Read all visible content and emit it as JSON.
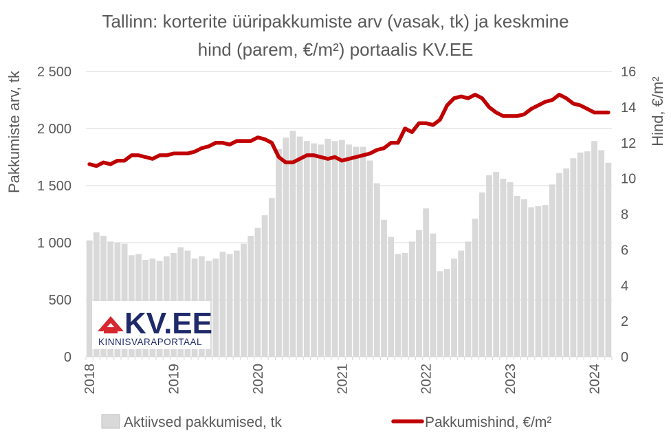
{
  "chart_data": {
    "type": "bar+line",
    "title_lines": [
      "Tallinn: korterite üüripakkumiste arv (vasak, tk) ja keskmine",
      "hind (parem, €/m²) portaalis KV.EE"
    ],
    "left_axis": {
      "label": "Pakkumiste arv, tk",
      "range": [
        0,
        2500
      ],
      "ticks": [
        0,
        500,
        1000,
        1500,
        2000,
        2500
      ],
      "tick_labels": [
        "0",
        "500",
        "1 000",
        "1 500",
        "2 000",
        "2 500"
      ]
    },
    "right_axis": {
      "label": "Hind, €/m²",
      "range": [
        0,
        16
      ],
      "ticks": [
        0,
        2,
        4,
        6,
        8,
        10,
        12,
        14,
        16
      ],
      "tick_labels": [
        "0",
        "2",
        "4",
        "6",
        "8",
        "10",
        "12",
        "14",
        "16"
      ]
    },
    "x_axis": {
      "start": "2018-01",
      "year_labels": [
        "2018",
        "2019",
        "2020",
        "2021",
        "2022",
        "2023",
        "2024"
      ]
    },
    "grid": "horizontal",
    "legend_position": "bottom",
    "series": [
      {
        "name": "Aktiivsed pakkumised, tk",
        "type": "bar",
        "axis": "left",
        "color": "#d9d9d9",
        "values": [
          1020,
          1090,
          1060,
          1010,
          1000,
          990,
          890,
          900,
          850,
          860,
          840,
          880,
          910,
          960,
          930,
          860,
          880,
          840,
          860,
          920,
          900,
          930,
          990,
          1060,
          1130,
          1240,
          1390,
          1820,
          1920,
          1980,
          1930,
          1890,
          1870,
          1860,
          1910,
          1890,
          1900,
          1860,
          1840,
          1840,
          1720,
          1520,
          1200,
          1050,
          900,
          910,
          1010,
          1110,
          1300,
          1080,
          750,
          770,
          860,
          930,
          1010,
          1210,
          1440,
          1590,
          1620,
          1560,
          1530,
          1410,
          1380,
          1310,
          1320,
          1330,
          1510,
          1610,
          1650,
          1740,
          1790,
          1800,
          1890,
          1810,
          1700
        ]
      },
      {
        "name": "Pakkumishind, €/m²",
        "type": "line",
        "axis": "right",
        "color": "#c00000",
        "values": [
          10.8,
          10.7,
          10.9,
          10.8,
          11.0,
          11.0,
          11.3,
          11.3,
          11.2,
          11.1,
          11.3,
          11.3,
          11.4,
          11.4,
          11.4,
          11.5,
          11.7,
          11.8,
          12.0,
          12.0,
          11.9,
          12.1,
          12.1,
          12.1,
          12.3,
          12.2,
          12.0,
          11.2,
          10.9,
          10.9,
          11.1,
          11.3,
          11.3,
          11.2,
          11.1,
          11.2,
          11.0,
          11.1,
          11.2,
          11.3,
          11.4,
          11.6,
          11.7,
          12.0,
          12.0,
          12.8,
          12.6,
          13.1,
          13.1,
          13.0,
          13.3,
          14.1,
          14.5,
          14.6,
          14.5,
          14.7,
          14.5,
          14.0,
          13.7,
          13.5,
          13.5,
          13.5,
          13.6,
          13.9,
          14.1,
          14.3,
          14.4,
          14.7,
          14.5,
          14.2,
          14.1,
          13.9,
          13.7,
          13.7,
          13.7
        ]
      }
    ]
  },
  "logo": {
    "text": "KV.EE",
    "subtitle": "KINNISVARAPORTAAL",
    "color": "#1f2a6b",
    "accent": "#d7262e"
  }
}
